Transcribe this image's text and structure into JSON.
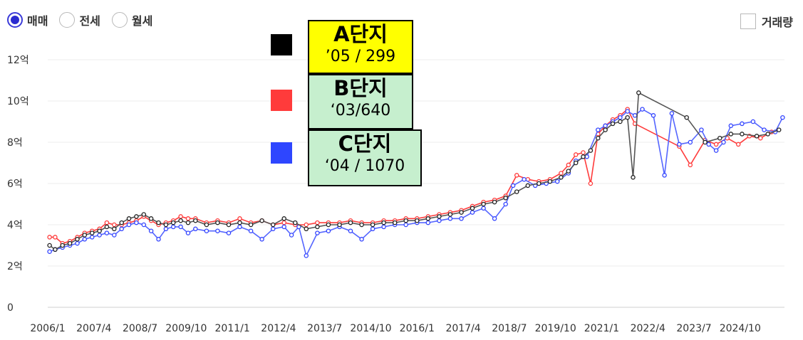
{
  "filters": {
    "trade_types": [
      {
        "label": "매매",
        "checked": true
      },
      {
        "label": "전세",
        "checked": false
      },
      {
        "label": "월세",
        "checked": false
      }
    ],
    "volume_label": "거래량"
  },
  "legend": [
    {
      "name": "A단지",
      "sub": "’05 / 299",
      "swatch": "#000000",
      "box_bg": "#ffff00"
    },
    {
      "name": "B단지",
      "sub": "‘03/640",
      "swatch": "#ff3b3b",
      "box_bg": "#c6efce"
    },
    {
      "name": "C단지",
      "sub": "‘04 / 1070",
      "swatch": "#2e46ff",
      "box_bg": "#c6efce"
    }
  ],
  "chart_data": {
    "type": "line",
    "title": "",
    "xlabel": "",
    "ylabel": "",
    "x_unit": "year",
    "xlim": [
      2006.0,
      2025.95
    ],
    "ylim": [
      0,
      12
    ],
    "yticks": [
      0,
      2,
      4,
      6,
      8,
      10,
      12
    ],
    "ytick_labels": [
      "0",
      "2억",
      "4억",
      "6억",
      "8억",
      "10억",
      "12억"
    ],
    "xtick_labels": [
      "2006/1",
      "2007/4",
      "2008/7",
      "2009/10",
      "2011/1",
      "2012/4",
      "2013/7",
      "2014/10",
      "2016/1",
      "2017/4",
      "2018/7",
      "2019/10",
      "2021/1",
      "2022/4",
      "2023/7",
      "2024/10"
    ],
    "xtick_positions": [
      2006.0,
      2007.25,
      2008.5,
      2009.75,
      2011.0,
      2012.25,
      2013.5,
      2014.75,
      2016.0,
      2017.25,
      2018.5,
      2019.75,
      2021.0,
      2022.25,
      2023.5,
      2024.75
    ],
    "grid": true,
    "series": [
      {
        "name": "A단지",
        "color": "#555555",
        "marker_edge": "#222222",
        "points": [
          [
            2006.05,
            3.0
          ],
          [
            2006.2,
            2.8
          ],
          [
            2006.4,
            3.0
          ],
          [
            2006.6,
            3.1
          ],
          [
            2006.8,
            3.3
          ],
          [
            2007.0,
            3.5
          ],
          [
            2007.2,
            3.6
          ],
          [
            2007.4,
            3.7
          ],
          [
            2007.6,
            3.9
          ],
          [
            2007.8,
            3.8
          ],
          [
            2008.0,
            4.1
          ],
          [
            2008.2,
            4.3
          ],
          [
            2008.4,
            4.4
          ],
          [
            2008.6,
            4.5
          ],
          [
            2008.8,
            4.3
          ],
          [
            2009.0,
            4.1
          ],
          [
            2009.2,
            4.0
          ],
          [
            2009.4,
            4.1
          ],
          [
            2009.6,
            4.2
          ],
          [
            2009.8,
            4.1
          ],
          [
            2010.0,
            4.2
          ],
          [
            2010.3,
            4.0
          ],
          [
            2010.6,
            4.1
          ],
          [
            2010.9,
            4.0
          ],
          [
            2011.2,
            4.1
          ],
          [
            2011.5,
            4.0
          ],
          [
            2011.8,
            4.2
          ],
          [
            2012.1,
            4.0
          ],
          [
            2012.4,
            4.3
          ],
          [
            2012.7,
            4.1
          ],
          [
            2013.0,
            3.8
          ],
          [
            2013.3,
            3.9
          ],
          [
            2013.6,
            4.0
          ],
          [
            2013.9,
            4.0
          ],
          [
            2014.2,
            4.1
          ],
          [
            2014.5,
            4.0
          ],
          [
            2014.8,
            4.0
          ],
          [
            2015.1,
            4.1
          ],
          [
            2015.4,
            4.1
          ],
          [
            2015.7,
            4.2
          ],
          [
            2016.0,
            4.2
          ],
          [
            2016.3,
            4.3
          ],
          [
            2016.6,
            4.4
          ],
          [
            2016.9,
            4.5
          ],
          [
            2017.2,
            4.6
          ],
          [
            2017.5,
            4.8
          ],
          [
            2017.8,
            5.0
          ],
          [
            2018.1,
            5.1
          ],
          [
            2018.4,
            5.3
          ],
          [
            2018.7,
            5.6
          ],
          [
            2019.0,
            5.9
          ],
          [
            2019.3,
            6.0
          ],
          [
            2019.6,
            6.1
          ],
          [
            2019.9,
            6.3
          ],
          [
            2020.1,
            6.6
          ],
          [
            2020.3,
            7.0
          ],
          [
            2020.5,
            7.3
          ],
          [
            2020.7,
            7.6
          ],
          [
            2020.9,
            8.2
          ],
          [
            2021.1,
            8.6
          ],
          [
            2021.3,
            8.9
          ],
          [
            2021.5,
            9.0
          ],
          [
            2021.7,
            9.2
          ],
          [
            2021.85,
            6.3
          ],
          [
            2022.0,
            10.4
          ],
          [
            2023.3,
            9.2
          ],
          [
            2023.8,
            8.0
          ],
          [
            2024.2,
            8.2
          ],
          [
            2024.5,
            8.4
          ],
          [
            2024.8,
            8.4
          ],
          [
            2025.2,
            8.3
          ],
          [
            2025.5,
            8.4
          ],
          [
            2025.8,
            8.6
          ]
        ]
      },
      {
        "name": "B단지",
        "color": "#ff3b3b",
        "marker_edge": "#ff3b3b",
        "points": [
          [
            2006.05,
            3.4
          ],
          [
            2006.2,
            3.4
          ],
          [
            2006.4,
            3.1
          ],
          [
            2006.6,
            3.2
          ],
          [
            2006.8,
            3.4
          ],
          [
            2007.0,
            3.6
          ],
          [
            2007.2,
            3.7
          ],
          [
            2007.4,
            3.8
          ],
          [
            2007.6,
            4.1
          ],
          [
            2007.8,
            4.0
          ],
          [
            2008.0,
            4.0
          ],
          [
            2008.2,
            4.1
          ],
          [
            2008.4,
            4.2
          ],
          [
            2008.6,
            4.4
          ],
          [
            2008.8,
            4.2
          ],
          [
            2009.0,
            4.0
          ],
          [
            2009.2,
            4.1
          ],
          [
            2009.4,
            4.2
          ],
          [
            2009.6,
            4.4
          ],
          [
            2009.8,
            4.3
          ],
          [
            2010.0,
            4.3
          ],
          [
            2010.3,
            4.1
          ],
          [
            2010.6,
            4.2
          ],
          [
            2010.9,
            4.1
          ],
          [
            2011.2,
            4.3
          ],
          [
            2011.5,
            4.1
          ],
          [
            2011.8,
            4.2
          ],
          [
            2012.1,
            4.0
          ],
          [
            2012.4,
            4.1
          ],
          [
            2012.7,
            4.0
          ],
          [
            2013.0,
            4.0
          ],
          [
            2013.3,
            4.1
          ],
          [
            2013.6,
            4.1
          ],
          [
            2013.9,
            4.1
          ],
          [
            2014.2,
            4.2
          ],
          [
            2014.5,
            4.1
          ],
          [
            2014.8,
            4.1
          ],
          [
            2015.1,
            4.2
          ],
          [
            2015.4,
            4.2
          ],
          [
            2015.7,
            4.3
          ],
          [
            2016.0,
            4.3
          ],
          [
            2016.3,
            4.4
          ],
          [
            2016.6,
            4.5
          ],
          [
            2016.9,
            4.6
          ],
          [
            2017.2,
            4.7
          ],
          [
            2017.5,
            4.9
          ],
          [
            2017.8,
            5.1
          ],
          [
            2018.1,
            5.2
          ],
          [
            2018.4,
            5.4
          ],
          [
            2018.7,
            6.4
          ],
          [
            2019.0,
            6.2
          ],
          [
            2019.3,
            6.1
          ],
          [
            2019.6,
            6.2
          ],
          [
            2019.9,
            6.5
          ],
          [
            2020.1,
            6.9
          ],
          [
            2020.3,
            7.4
          ],
          [
            2020.5,
            7.5
          ],
          [
            2020.7,
            6.0
          ],
          [
            2020.9,
            8.4
          ],
          [
            2021.1,
            8.8
          ],
          [
            2021.3,
            9.1
          ],
          [
            2021.5,
            9.3
          ],
          [
            2021.7,
            9.6
          ],
          [
            2021.9,
            8.9
          ],
          [
            2023.1,
            7.8
          ],
          [
            2023.4,
            6.9
          ],
          [
            2023.8,
            8.1
          ],
          [
            2024.1,
            7.9
          ],
          [
            2024.4,
            8.2
          ],
          [
            2024.7,
            7.9
          ],
          [
            2025.0,
            8.3
          ],
          [
            2025.3,
            8.2
          ],
          [
            2025.6,
            8.5
          ]
        ]
      },
      {
        "name": "C단지",
        "color": "#5566ff",
        "marker_edge": "#3344ff",
        "points": [
          [
            2006.05,
            2.7
          ],
          [
            2006.2,
            2.8
          ],
          [
            2006.4,
            2.9
          ],
          [
            2006.6,
            3.0
          ],
          [
            2006.8,
            3.1
          ],
          [
            2007.0,
            3.3
          ],
          [
            2007.2,
            3.4
          ],
          [
            2007.4,
            3.5
          ],
          [
            2007.6,
            3.6
          ],
          [
            2007.8,
            3.5
          ],
          [
            2008.0,
            3.8
          ],
          [
            2008.2,
            4.0
          ],
          [
            2008.4,
            4.1
          ],
          [
            2008.6,
            4.0
          ],
          [
            2008.8,
            3.7
          ],
          [
            2009.0,
            3.3
          ],
          [
            2009.2,
            3.8
          ],
          [
            2009.4,
            3.9
          ],
          [
            2009.6,
            3.9
          ],
          [
            2009.8,
            3.6
          ],
          [
            2010.0,
            3.8
          ],
          [
            2010.3,
            3.7
          ],
          [
            2010.6,
            3.7
          ],
          [
            2010.9,
            3.6
          ],
          [
            2011.2,
            3.9
          ],
          [
            2011.5,
            3.7
          ],
          [
            2011.8,
            3.3
          ],
          [
            2012.1,
            3.8
          ],
          [
            2012.4,
            3.9
          ],
          [
            2012.6,
            3.5
          ],
          [
            2012.8,
            3.9
          ],
          [
            2013.0,
            2.5
          ],
          [
            2013.3,
            3.6
          ],
          [
            2013.6,
            3.7
          ],
          [
            2013.9,
            3.9
          ],
          [
            2014.2,
            3.7
          ],
          [
            2014.5,
            3.3
          ],
          [
            2014.8,
            3.8
          ],
          [
            2015.1,
            3.9
          ],
          [
            2015.4,
            4.0
          ],
          [
            2015.7,
            4.0
          ],
          [
            2016.0,
            4.1
          ],
          [
            2016.3,
            4.1
          ],
          [
            2016.6,
            4.2
          ],
          [
            2016.9,
            4.3
          ],
          [
            2017.2,
            4.3
          ],
          [
            2017.5,
            4.6
          ],
          [
            2017.8,
            4.8
          ],
          [
            2018.1,
            4.3
          ],
          [
            2018.4,
            5.0
          ],
          [
            2018.6,
            5.9
          ],
          [
            2018.9,
            6.2
          ],
          [
            2019.2,
            5.9
          ],
          [
            2019.5,
            6.0
          ],
          [
            2019.8,
            6.1
          ],
          [
            2020.1,
            6.5
          ],
          [
            2020.3,
            7.1
          ],
          [
            2020.6,
            7.3
          ],
          [
            2020.9,
            8.6
          ],
          [
            2021.1,
            8.8
          ],
          [
            2021.3,
            9.0
          ],
          [
            2021.5,
            9.2
          ],
          [
            2021.7,
            9.5
          ],
          [
            2021.9,
            9.3
          ],
          [
            2022.1,
            9.6
          ],
          [
            2022.4,
            9.3
          ],
          [
            2022.7,
            6.4
          ],
          [
            2022.9,
            9.4
          ],
          [
            2023.1,
            7.9
          ],
          [
            2023.4,
            8.0
          ],
          [
            2023.7,
            8.6
          ],
          [
            2023.9,
            7.9
          ],
          [
            2024.1,
            7.6
          ],
          [
            2024.3,
            8.0
          ],
          [
            2024.5,
            8.8
          ],
          [
            2024.8,
            8.9
          ],
          [
            2025.1,
            9.0
          ],
          [
            2025.4,
            8.6
          ],
          [
            2025.7,
            8.5
          ],
          [
            2025.9,
            9.2
          ]
        ]
      }
    ]
  }
}
